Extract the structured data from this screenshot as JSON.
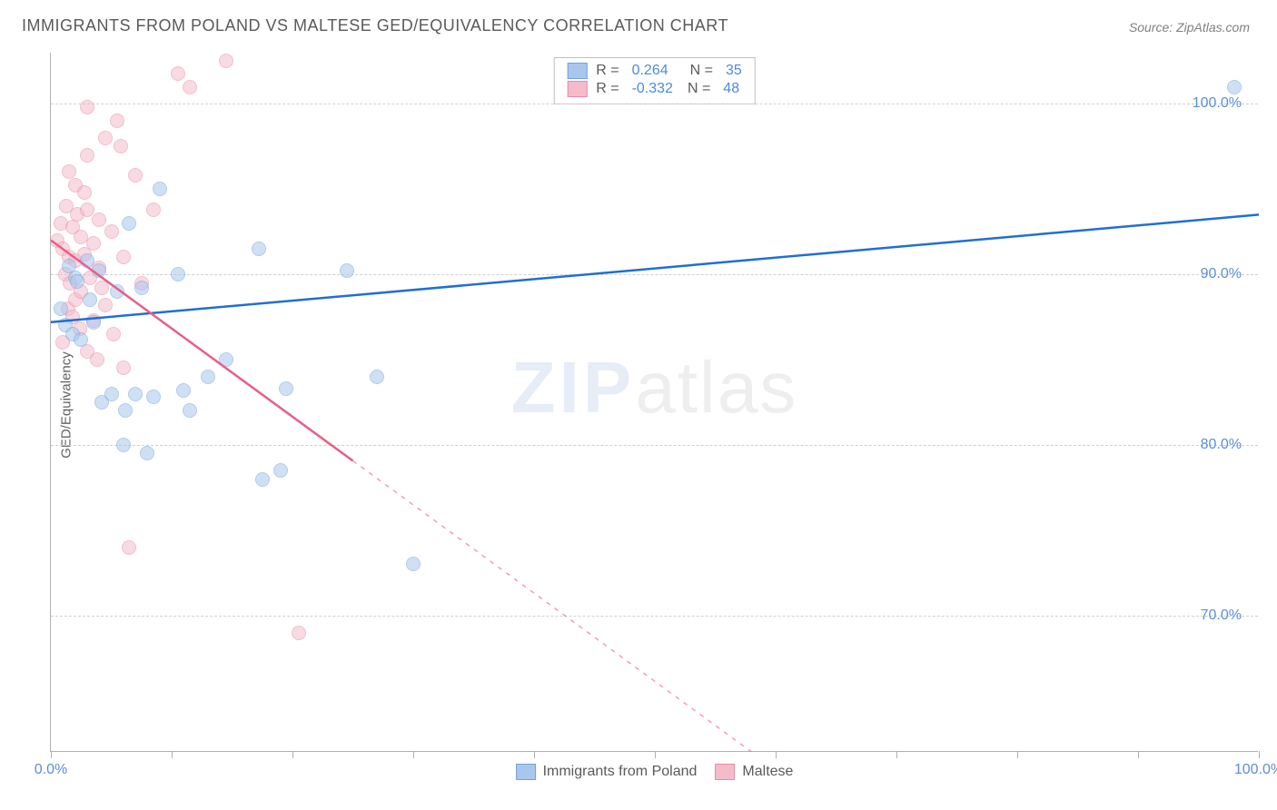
{
  "title": "IMMIGRANTS FROM POLAND VS MALTESE GED/EQUIVALENCY CORRELATION CHART",
  "source": "Source: ZipAtlas.com",
  "ylabel": "GED/Equivalency",
  "watermark_a": "ZIP",
  "watermark_b": "atlas",
  "chart": {
    "type": "scatter",
    "background_color": "#ffffff",
    "grid_color": "#d0d0d0",
    "axis_color": "#b0b0b0",
    "text_color": "#606060",
    "tick_color": "#5a8fd6",
    "marker_radius": 8,
    "marker_opacity": 0.55,
    "xlim": [
      0,
      100
    ],
    "ylim": [
      62,
      103
    ],
    "yticks": [
      70,
      80,
      90,
      100
    ],
    "ytick_labels": [
      "70.0%",
      "80.0%",
      "90.0%",
      "100.0%"
    ],
    "xtick_positions": [
      0,
      10,
      20,
      30,
      40,
      50,
      60,
      70,
      80,
      90,
      100
    ],
    "xtick_labels": {
      "0": "0.0%",
      "100": "100.0%"
    },
    "series": [
      {
        "key": "poland",
        "label": "Immigrants from Poland",
        "fill": "#a9c7ec",
        "stroke": "#6fa3de",
        "trend_color": "#1f6fd4",
        "trend_width": 2.5,
        "R": "0.264",
        "N": "35",
        "points": [
          [
            0.8,
            88.0
          ],
          [
            1.2,
            87.0
          ],
          [
            1.5,
            90.5
          ],
          [
            1.8,
            86.5
          ],
          [
            2.0,
            89.8
          ],
          [
            2.2,
            89.6
          ],
          [
            2.5,
            86.2
          ],
          [
            3.0,
            90.8
          ],
          [
            3.2,
            88.5
          ],
          [
            3.5,
            87.2
          ],
          [
            4.0,
            90.2
          ],
          [
            4.2,
            82.5
          ],
          [
            5.0,
            83.0
          ],
          [
            5.5,
            89.0
          ],
          [
            6.0,
            80.0
          ],
          [
            6.2,
            82.0
          ],
          [
            6.5,
            93.0
          ],
          [
            7.0,
            83.0
          ],
          [
            7.5,
            89.2
          ],
          [
            8.0,
            79.5
          ],
          [
            8.5,
            82.8
          ],
          [
            9.0,
            95.0
          ],
          [
            10.5,
            90.0
          ],
          [
            11.0,
            83.2
          ],
          [
            11.5,
            82.0
          ],
          [
            13.0,
            84.0
          ],
          [
            14.5,
            85.0
          ],
          [
            17.2,
            91.5
          ],
          [
            17.5,
            78.0
          ],
          [
            19.0,
            78.5
          ],
          [
            19.5,
            83.3
          ],
          [
            24.5,
            90.2
          ],
          [
            27.0,
            84.0
          ],
          [
            30.0,
            73.0
          ],
          [
            98.0,
            101.0
          ]
        ],
        "trend": {
          "x1": 0,
          "y1": 87.2,
          "x2": 100,
          "y2": 93.5
        },
        "trend_solid_until": 100
      },
      {
        "key": "maltese",
        "label": "Maltese",
        "fill": "#f4bccb",
        "stroke": "#e98aa6",
        "trend_color": "#e85f87",
        "trend_width": 2.5,
        "R": "-0.332",
        "N": "48",
        "points": [
          [
            0.5,
            92.0
          ],
          [
            0.8,
            93.0
          ],
          [
            1.0,
            86.0
          ],
          [
            1.0,
            91.5
          ],
          [
            1.2,
            90.0
          ],
          [
            1.3,
            94.0
          ],
          [
            1.4,
            88.0
          ],
          [
            1.5,
            96.0
          ],
          [
            1.5,
            91.0
          ],
          [
            1.6,
            89.5
          ],
          [
            1.8,
            92.8
          ],
          [
            1.8,
            87.5
          ],
          [
            2.0,
            95.2
          ],
          [
            2.0,
            90.8
          ],
          [
            2.0,
            88.5
          ],
          [
            2.2,
            93.5
          ],
          [
            2.4,
            86.8
          ],
          [
            2.5,
            92.2
          ],
          [
            2.5,
            89.0
          ],
          [
            2.8,
            94.8
          ],
          [
            2.8,
            91.2
          ],
          [
            3.0,
            97.0
          ],
          [
            3.0,
            93.8
          ],
          [
            3.0,
            85.5
          ],
          [
            3.2,
            89.8
          ],
          [
            3.5,
            91.8
          ],
          [
            3.5,
            87.3
          ],
          [
            3.8,
            85.0
          ],
          [
            4.0,
            93.2
          ],
          [
            4.0,
            90.4
          ],
          [
            4.2,
            89.2
          ],
          [
            4.5,
            98.0
          ],
          [
            4.5,
            88.2
          ],
          [
            5.0,
            92.5
          ],
          [
            5.2,
            86.5
          ],
          [
            5.5,
            99.0
          ],
          [
            5.8,
            97.5
          ],
          [
            6.0,
            91.0
          ],
          [
            6.0,
            84.5
          ],
          [
            6.5,
            74.0
          ],
          [
            7.0,
            95.8
          ],
          [
            7.5,
            89.5
          ],
          [
            8.5,
            93.8
          ],
          [
            10.5,
            101.8
          ],
          [
            11.5,
            101.0
          ],
          [
            14.5,
            102.5
          ],
          [
            20.5,
            69.0
          ],
          [
            3.0,
            99.8
          ]
        ],
        "trend": {
          "x1": 0,
          "y1": 92.0,
          "x2": 58,
          "y2": 62.0
        },
        "trend_solid_until": 25
      }
    ]
  }
}
